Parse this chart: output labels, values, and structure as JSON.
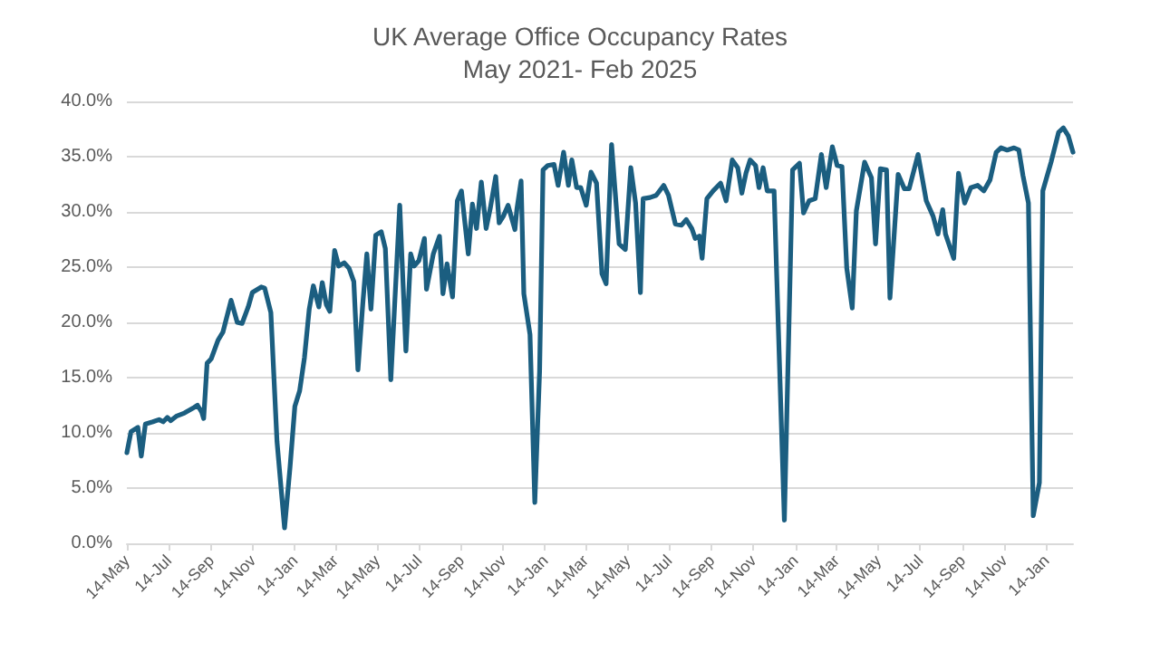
{
  "chart_data": {
    "type": "line",
    "title": "UK Average Office Occupancy Rates",
    "subtitle": "May 2021- Feb 2025",
    "x": [
      "2021-05-14",
      "2021-05-20",
      "2021-05-30",
      "2021-06-04",
      "2021-06-10",
      "2021-06-21",
      "2021-06-30",
      "2021-07-06",
      "2021-07-12",
      "2021-07-17",
      "2021-07-25",
      "2021-08-06",
      "2021-08-20",
      "2021-08-25",
      "2021-08-31",
      "2021-09-03",
      "2021-09-08",
      "2021-09-14",
      "2021-09-24",
      "2021-10-01",
      "2021-10-13",
      "2021-10-22",
      "2021-10-29",
      "2021-11-07",
      "2021-11-13",
      "2021-11-26",
      "2021-12-01",
      "2021-12-10",
      "2021-12-19",
      "2021-12-30",
      "2022-01-07",
      "2022-01-14",
      "2022-01-21",
      "2022-01-28",
      "2022-02-04",
      "2022-02-10",
      "2022-02-18",
      "2022-02-23",
      "2022-03-01",
      "2022-03-06",
      "2022-03-13",
      "2022-03-19",
      "2022-03-27",
      "2022-04-03",
      "2022-04-10",
      "2022-04-16",
      "2022-04-23",
      "2022-04-29",
      "2022-05-05",
      "2022-05-12",
      "2022-05-20",
      "2022-05-26",
      "2022-06-03",
      "2022-06-16",
      "2022-06-25",
      "2022-07-02",
      "2022-07-07",
      "2022-07-14",
      "2022-07-22",
      "2022-07-25",
      "2022-08-04",
      "2022-08-13",
      "2022-08-18",
      "2022-08-24",
      "2022-09-01",
      "2022-09-08",
      "2022-09-14",
      "2022-09-24",
      "2022-09-30",
      "2022-10-06",
      "2022-10-13",
      "2022-10-20",
      "2022-10-26",
      "2022-11-03",
      "2022-11-08",
      "2022-11-14",
      "2022-11-21",
      "2022-12-01",
      "2022-12-04",
      "2022-12-10",
      "2022-12-14",
      "2022-12-23",
      "2022-12-30",
      "2023-01-06",
      "2023-01-11",
      "2023-01-18",
      "2023-01-27",
      "2023-02-02",
      "2023-02-10",
      "2023-02-17",
      "2023-02-22",
      "2023-03-01",
      "2023-03-07",
      "2023-03-15",
      "2023-03-22",
      "2023-03-30",
      "2023-04-07",
      "2023-04-13",
      "2023-04-21",
      "2023-05-02",
      "2023-05-11",
      "2023-05-19",
      "2023-05-26",
      "2023-06-02",
      "2023-06-06",
      "2023-06-16",
      "2023-06-25",
      "2023-07-06",
      "2023-07-13",
      "2023-07-23",
      "2023-08-01",
      "2023-08-08",
      "2023-08-16",
      "2023-08-21",
      "2023-08-27",
      "2023-08-31",
      "2023-09-07",
      "2023-09-16",
      "2023-09-27",
      "2023-10-05",
      "2023-10-14",
      "2023-10-22",
      "2023-10-28",
      "2023-11-03",
      "2023-11-09",
      "2023-11-17",
      "2023-11-22",
      "2023-11-28",
      "2023-12-04",
      "2023-12-14",
      "2023-12-29",
      "2024-01-10",
      "2024-01-20",
      "2024-01-26",
      "2024-02-03",
      "2024-02-12",
      "2024-02-21",
      "2024-02-28",
      "2024-03-08",
      "2024-03-15",
      "2024-03-22",
      "2024-03-29",
      "2024-04-06",
      "2024-04-12",
      "2024-04-24",
      "2024-05-04",
      "2024-05-10",
      "2024-05-17",
      "2024-05-26",
      "2024-05-31",
      "2024-06-12",
      "2024-06-21",
      "2024-06-28",
      "2024-07-11",
      "2024-07-23",
      "2024-08-02",
      "2024-08-09",
      "2024-08-16",
      "2024-08-20",
      "2024-09-01",
      "2024-09-08",
      "2024-09-17",
      "2024-09-26",
      "2024-10-06",
      "2024-10-15",
      "2024-10-24",
      "2024-11-02",
      "2024-11-09",
      "2024-11-18",
      "2024-11-28",
      "2024-12-05",
      "2024-12-11",
      "2024-12-19",
      "2024-12-26",
      "2025-01-04",
      "2025-01-09",
      "2025-01-21",
      "2025-02-01",
      "2025-02-08",
      "2025-02-15",
      "2025-02-22"
    ],
    "series": [
      {
        "color": "#1b5e80",
        "values": [
          8.2,
          10.1,
          10.5,
          7.9,
          10.8,
          11.0,
          11.2,
          11.0,
          11.4,
          11.1,
          11.5,
          11.8,
          12.3,
          12.5,
          11.9,
          11.3,
          16.3,
          16.7,
          18.4,
          19.1,
          22.0,
          20.0,
          19.9,
          21.4,
          22.7,
          23.2,
          23.1,
          20.9,
          9.2,
          1.4,
          6.9,
          12.4,
          13.8,
          16.8,
          21.2,
          23.3,
          21.4,
          23.6,
          21.6,
          21.0,
          26.5,
          25.1,
          25.4,
          24.9,
          23.7,
          15.7,
          21.6,
          26.2,
          21.2,
          27.9,
          28.2,
          26.7,
          14.8,
          30.6,
          17.4,
          26.2,
          25.1,
          25.6,
          27.6,
          23.0,
          26.2,
          27.8,
          22.6,
          25.3,
          22.3,
          31.0,
          31.9,
          26.2,
          30.7,
          28.5,
          32.7,
          28.5,
          30.3,
          33.2,
          29.0,
          29.6,
          30.6,
          28.4,
          30.3,
          32.8,
          22.6,
          18.9,
          3.7,
          15.6,
          33.8,
          34.2,
          34.3,
          32.4,
          35.4,
          32.4,
          34.7,
          32.2,
          32.2,
          30.6,
          33.6,
          32.6,
          24.4,
          23.5,
          36.1,
          27.1,
          26.6,
          34.0,
          30.8,
          22.7,
          31.2,
          31.3,
          31.5,
          32.4,
          31.5,
          28.9,
          28.8,
          29.3,
          28.5,
          27.6,
          27.8,
          25.8,
          31.2,
          31.9,
          32.6,
          31.0,
          34.7,
          34.0,
          31.7,
          33.5,
          34.7,
          34.2,
          32.2,
          34.0,
          31.9,
          31.9,
          2.1,
          33.8,
          34.4,
          29.9,
          31.0,
          31.2,
          35.2,
          32.2,
          35.9,
          34.2,
          34.1,
          24.9,
          21.3,
          30.1,
          34.5,
          33.1,
          27.1,
          33.9,
          33.8,
          22.2,
          33.4,
          32.1,
          32.1,
          35.2,
          31.0,
          29.6,
          28.0,
          30.2,
          28.0,
          25.8,
          33.5,
          30.8,
          32.2,
          32.4,
          31.9,
          32.9,
          35.4,
          35.8,
          35.6,
          35.8,
          35.6,
          33.3,
          30.8,
          2.5,
          5.5,
          31.9,
          34.5,
          37.2,
          37.6,
          36.9,
          35.4
        ]
      }
    ],
    "xlim": [
      "2021-05-14",
      "2025-02-22"
    ],
    "xticks": [
      {
        "value": "2021-05-14",
        "label": "14-May"
      },
      {
        "value": "2021-07-14",
        "label": "14-Jul"
      },
      {
        "value": "2021-09-14",
        "label": "14-Sep"
      },
      {
        "value": "2021-11-14",
        "label": "14-Nov"
      },
      {
        "value": "2022-01-14",
        "label": "14-Jan"
      },
      {
        "value": "2022-03-14",
        "label": "14-Mar"
      },
      {
        "value": "2022-05-14",
        "label": "14-May"
      },
      {
        "value": "2022-07-14",
        "label": "14-Jul"
      },
      {
        "value": "2022-09-14",
        "label": "14-Sep"
      },
      {
        "value": "2022-11-14",
        "label": "14-Nov"
      },
      {
        "value": "2023-01-14",
        "label": "14-Jan"
      },
      {
        "value": "2023-03-14",
        "label": "14-Mar"
      },
      {
        "value": "2023-05-14",
        "label": "14-May"
      },
      {
        "value": "2023-07-14",
        "label": "14-Jul"
      },
      {
        "value": "2023-09-14",
        "label": "14-Sep"
      },
      {
        "value": "2023-11-14",
        "label": "14-Nov"
      },
      {
        "value": "2024-01-14",
        "label": "14-Jan"
      },
      {
        "value": "2024-03-14",
        "label": "14-Mar"
      },
      {
        "value": "2024-05-14",
        "label": "14-May"
      },
      {
        "value": "2024-07-14",
        "label": "14-Jul"
      },
      {
        "value": "2024-09-14",
        "label": "14-Sep"
      },
      {
        "value": "2024-11-14",
        "label": "14-Nov"
      },
      {
        "value": "2025-01-14",
        "label": "14-Jan"
      }
    ],
    "ylim": [
      0,
      40
    ],
    "yticks": [
      {
        "value": 0,
        "label": "0.0%"
      },
      {
        "value": 5,
        "label": "5.0%"
      },
      {
        "value": 10,
        "label": "10.0%"
      },
      {
        "value": 15,
        "label": "15.0%"
      },
      {
        "value": 20,
        "label": "20.0%"
      },
      {
        "value": 25,
        "label": "25.0%"
      },
      {
        "value": 30,
        "label": "30.0%"
      },
      {
        "value": 35,
        "label": "35.0%"
      },
      {
        "value": 40,
        "label": "40.0%"
      }
    ],
    "grid": "y",
    "marker": "none",
    "line_style": "solid"
  }
}
